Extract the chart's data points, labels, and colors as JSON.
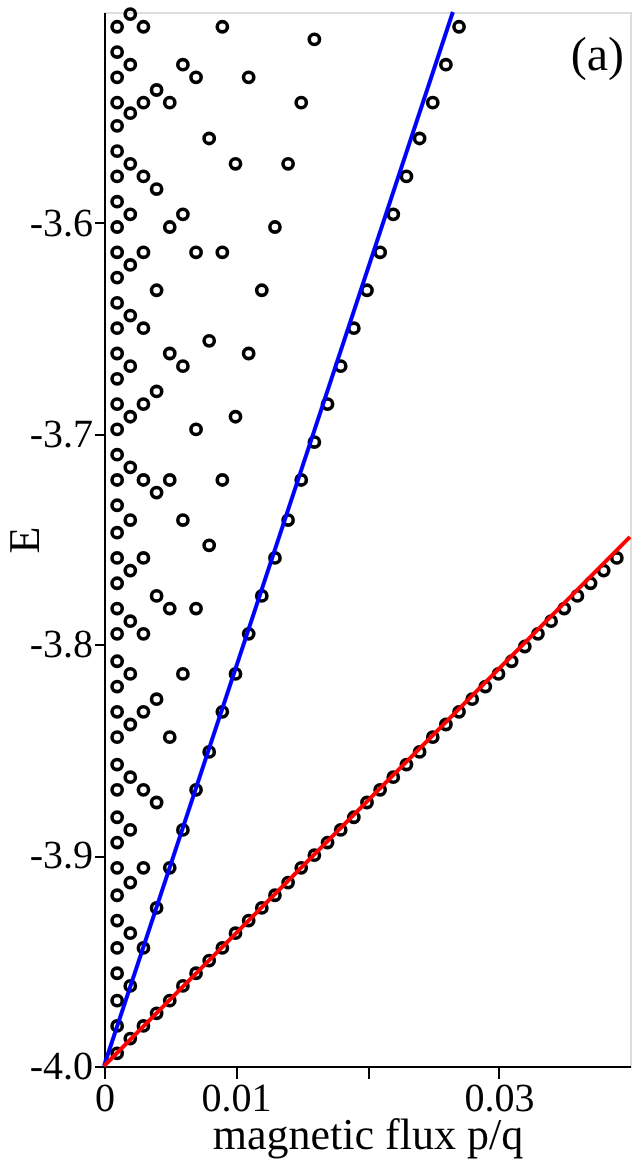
{
  "chart_data": {
    "type": "scatter",
    "xlabel": "magnetic flux p/q",
    "ylabel": "E",
    "xlim": [
      0,
      0.04
    ],
    "ylim": [
      -4,
      -3.5
    ],
    "xticks": [
      0,
      0.01,
      {
        "value": 0.02,
        "label": null
      },
      0.03
    ],
    "yticks": [
      {
        "value": -4,
        "label": "-4.0"
      },
      -3.9,
      -3.8,
      -3.7,
      -3.6
    ],
    "annotations": [
      "(a)"
    ],
    "series": [
      {
        "marker": "circle",
        "color": "#000000",
        "x": [
          0.001,
          0.001,
          0.001,
          0.001,
          0.001,
          0.001,
          0.001,
          0.001,
          0.001,
          0.001,
          0.001,
          0.001,
          0.001,
          0.001,
          0.001,
          0.001,
          0.001,
          0.001,
          0.001,
          0.001,
          0.001,
          0.001,
          0.001,
          0.001,
          0.001,
          0.001,
          0.001,
          0.001,
          0.001,
          0.001,
          0.001,
          0.001,
          0.001,
          0.001,
          0.001,
          0.001,
          0.001,
          0.001,
          0.001,
          0.001,
          0.001,
          0.002,
          0.002,
          0.002,
          0.002,
          0.002,
          0.002,
          0.002,
          0.002,
          0.002,
          0.002,
          0.002,
          0.002,
          0.002,
          0.002,
          0.002,
          0.002,
          0.002,
          0.002,
          0.002,
          0.002,
          0.002,
          0.003,
          0.003,
          0.003,
          0.003,
          0.003,
          0.003,
          0.003,
          0.003,
          0.003,
          0.003,
          0.003,
          0.003,
          0.003,
          0.003,
          0.004,
          0.004,
          0.004,
          0.004,
          0.004,
          0.004,
          0.004,
          0.004,
          0.004,
          0.004,
          0.005,
          0.005,
          0.005,
          0.005,
          0.005,
          0.005,
          0.005,
          0.005,
          0.006,
          0.006,
          0.006,
          0.006,
          0.006,
          0.006,
          0.006,
          0.007,
          0.007,
          0.007,
          0.007,
          0.007,
          0.007,
          0.008,
          0.008,
          0.008,
          0.008,
          0.008,
          0.009,
          0.009,
          0.009,
          0.009,
          0.009,
          0.01,
          0.01,
          0.01,
          0.01,
          0.011,
          0.011,
          0.011,
          0.011,
          0.012,
          0.012,
          0.012,
          0.013,
          0.013,
          0.013,
          0.014,
          0.014,
          0.014,
          0.015,
          0.015,
          0.015,
          0.016,
          0.016,
          0.016,
          0.017,
          0.017,
          0.018,
          0.018,
          0.019,
          0.019,
          0.02,
          0.02,
          0.021,
          0.021,
          0.022,
          0.022,
          0.023,
          0.023,
          0.024,
          0.024,
          0.025,
          0.025,
          0.026,
          0.026,
          0.027,
          0.027,
          0.028,
          0.029,
          0.03,
          0.031,
          0.032,
          0.033,
          0.034,
          0.035,
          0.036,
          0.037,
          0.038,
          0.039
        ],
        "values": [
          -3.994,
          -3.981,
          -3.969,
          -3.956,
          -3.944,
          -3.931,
          -3.919,
          -3.906,
          -3.894,
          -3.882,
          -3.869,
          -3.857,
          -3.844,
          -3.832,
          -3.82,
          -3.808,
          -3.795,
          -3.783,
          -3.771,
          -3.759,
          -3.747,
          -3.734,
          -3.722,
          -3.71,
          -3.698,
          -3.686,
          -3.674,
          -3.662,
          -3.65,
          -3.638,
          -3.626,
          -3.614,
          -3.602,
          -3.59,
          -3.578,
          -3.566,
          -3.554,
          -3.543,
          -3.531,
          -3.519,
          -3.507,
          -3.987,
          -3.962,
          -3.937,
          -3.913,
          -3.888,
          -3.863,
          -3.838,
          -3.814,
          -3.789,
          -3.765,
          -3.741,
          -3.716,
          -3.692,
          -3.668,
          -3.644,
          -3.62,
          -3.596,
          -3.572,
          -3.548,
          -3.525,
          -3.501,
          -3.981,
          -3.944,
          -3.906,
          -3.869,
          -3.832,
          -3.795,
          -3.759,
          -3.722,
          -3.686,
          -3.65,
          -3.614,
          -3.578,
          -3.543,
          -3.507,
          -3.975,
          -3.925,
          -3.875,
          -3.826,
          -3.777,
          -3.728,
          -3.68,
          -3.632,
          -3.584,
          -3.537,
          -3.969,
          -3.906,
          -3.844,
          -3.783,
          -3.722,
          -3.662,
          -3.602,
          -3.543,
          -3.962,
          -3.888,
          -3.814,
          -3.741,
          -3.668,
          -3.596,
          -3.525,
          -3.956,
          -3.869,
          -3.783,
          -3.698,
          -3.614,
          -3.531,
          -3.95,
          -3.851,
          -3.753,
          -3.656,
          -3.56,
          -3.944,
          -3.832,
          -3.722,
          -3.614,
          -3.507,
          -3.937,
          -3.814,
          -3.692,
          -3.572,
          -3.931,
          -3.795,
          -3.662,
          -3.531,
          -3.925,
          -3.777,
          -3.632,
          -3.919,
          -3.759,
          -3.602,
          -3.913,
          -3.741,
          -3.572,
          -3.906,
          -3.722,
          -3.543,
          -3.9,
          -3.704,
          -3.513,
          -3.894,
          -3.686,
          -3.888,
          -3.668,
          -3.882,
          -3.65,
          -3.875,
          -3.632,
          -3.869,
          -3.614,
          -3.863,
          -3.596,
          -3.857,
          -3.578,
          -3.851,
          -3.56,
          -3.844,
          -3.543,
          -3.838,
          -3.525,
          -3.832,
          -3.507,
          -3.826,
          -3.82,
          -3.814,
          -3.808,
          -3.801,
          -3.795,
          -3.789,
          -3.783,
          -3.777,
          -3.771,
          -3.765,
          -3.759
        ]
      },
      {
        "type": "line",
        "line_style": "solid",
        "color": "#0000ff",
        "x": [
          0,
          0.02653
        ],
        "values": [
          -4,
          -3.5
        ]
      },
      {
        "type": "line",
        "line_style": "solid",
        "color": "#ff0000",
        "x": [
          0,
          0.04
        ],
        "values": [
          -4,
          -3.749
        ]
      }
    ]
  }
}
